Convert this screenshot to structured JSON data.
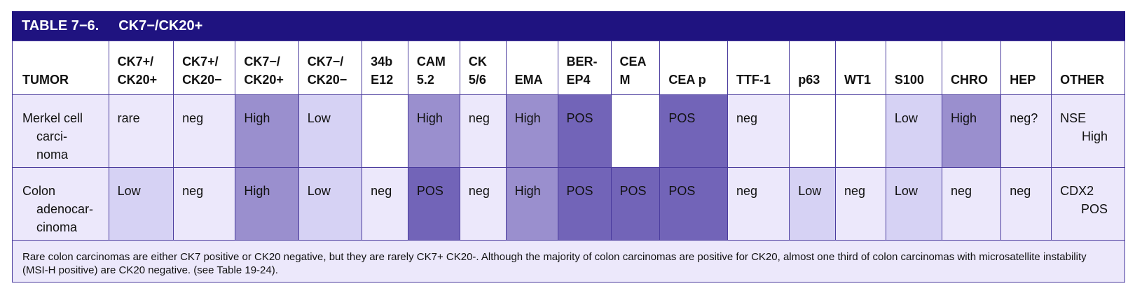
{
  "table": {
    "title_number": "TABLE 7−6.",
    "title_text": "CK7−/CK20+",
    "headers": [
      [
        "TUMOR"
      ],
      [
        "CK7+/",
        "CK20+"
      ],
      [
        "CK7+/",
        "CK20−"
      ],
      [
        "CK7−/",
        "CK20+"
      ],
      [
        "CK7−/",
        "CK20−"
      ],
      [
        "34b",
        "E12"
      ],
      [
        "CAM",
        "5.2"
      ],
      [
        "CK",
        "5/6"
      ],
      [
        "EMA"
      ],
      [
        "BER-",
        "EP4"
      ],
      [
        "CEA",
        "M"
      ],
      [
        "CEA p"
      ],
      [
        "TTF-1"
      ],
      [
        "p63"
      ],
      [
        "WT1"
      ],
      [
        "S100"
      ],
      [
        "CHRO"
      ],
      [
        "HEP"
      ],
      [
        "OTHER"
      ]
    ],
    "rows": [
      {
        "tumor": [
          "Merkel cell",
          "carci-",
          "noma"
        ],
        "cells": [
          "rare",
          "neg",
          "High",
          "Low",
          "",
          "High",
          "neg",
          "High",
          "POS",
          "",
          "POS",
          "neg",
          "",
          "",
          "Low",
          "High",
          "neg?"
        ],
        "levels": [
          "light",
          "light",
          "high",
          "low",
          "none",
          "high",
          "light",
          "high",
          "pos",
          "none",
          "pos",
          "light",
          "none",
          "none",
          "low",
          "high",
          "light"
        ],
        "other": [
          "NSE",
          "High"
        ]
      },
      {
        "tumor": [
          "Colon",
          "adenocar-",
          "cinoma"
        ],
        "cells": [
          "Low",
          "neg",
          "High",
          "Low",
          "neg",
          "POS",
          "neg",
          "High",
          "POS",
          "POS",
          "POS",
          "neg",
          "Low",
          "neg",
          "Low",
          "neg",
          "neg"
        ],
        "levels": [
          "low",
          "light",
          "high",
          "low",
          "light",
          "pos",
          "light",
          "high",
          "pos",
          "pos",
          "pos",
          "light",
          "low",
          "light",
          "low",
          "light",
          "light"
        ],
        "other": [
          "CDX2",
          "POS"
        ]
      }
    ],
    "note": "Rare colon carcinomas are either CK7 positive or CK20 negative, but they are rarely CK7+ CK20-. Although the majority of colon carcinomas are positive for CK20, almost one third of colon carcinomas with microsatellite instability (MSI-H positive) are CK20 negative. (see Table 19-24).",
    "colors": {
      "title_bar": "#1f1380",
      "none": "#ffffff",
      "light": "#ece8fb",
      "low": "#d6d2f4",
      "high": "#9a8fce",
      "pos": "#7264b8"
    }
  }
}
